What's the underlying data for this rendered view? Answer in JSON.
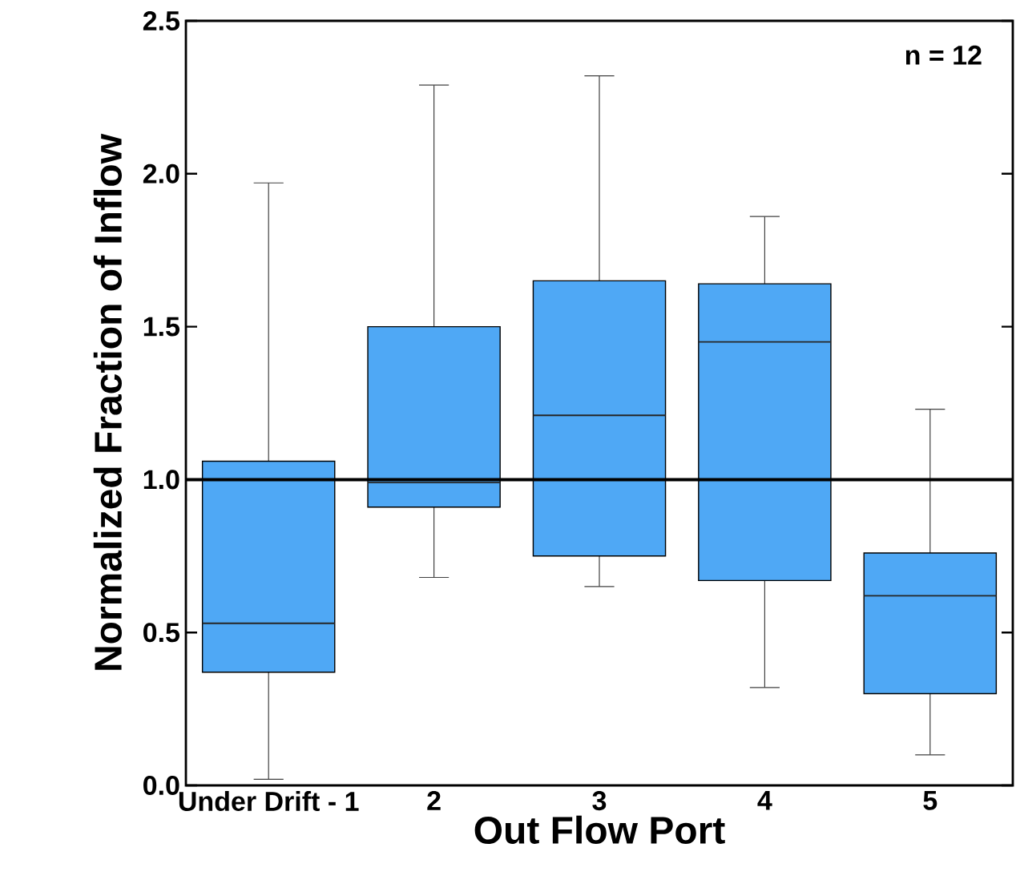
{
  "chart_data": {
    "type": "box",
    "xlabel": "Out Flow Port",
    "ylabel": "Normalized Fraction of Inflow",
    "categories": [
      "Under Drift - 1",
      "2",
      "3",
      "4",
      "5"
    ],
    "boxes": [
      {
        "low": 0.02,
        "q1": 0.37,
        "median": 0.53,
        "q3": 1.06,
        "high": 1.97
      },
      {
        "low": 0.68,
        "q1": 0.91,
        "median": 0.99,
        "q3": 1.5,
        "high": 2.29
      },
      {
        "low": 0.65,
        "q1": 0.75,
        "median": 1.21,
        "q3": 1.65,
        "high": 2.32
      },
      {
        "low": 0.32,
        "q1": 0.67,
        "median": 1.45,
        "q3": 1.64,
        "high": 1.86
      },
      {
        "low": 0.1,
        "q1": 0.3,
        "median": 0.62,
        "q3": 0.76,
        "high": 1.23
      }
    ],
    "color": "#4fa8f5",
    "ylim": [
      0,
      2.5
    ],
    "yticks": [
      {
        "value": 0,
        "label": "0.0"
      },
      0.5,
      {
        "value": 1,
        "label": "1.0"
      },
      1.5,
      {
        "value": 2,
        "label": "2.0"
      },
      2.5
    ],
    "ref_lines": [
      {
        "axis": "y",
        "value": 1,
        "color": "#000000"
      }
    ],
    "annotations": [
      "n = 12"
    ]
  }
}
